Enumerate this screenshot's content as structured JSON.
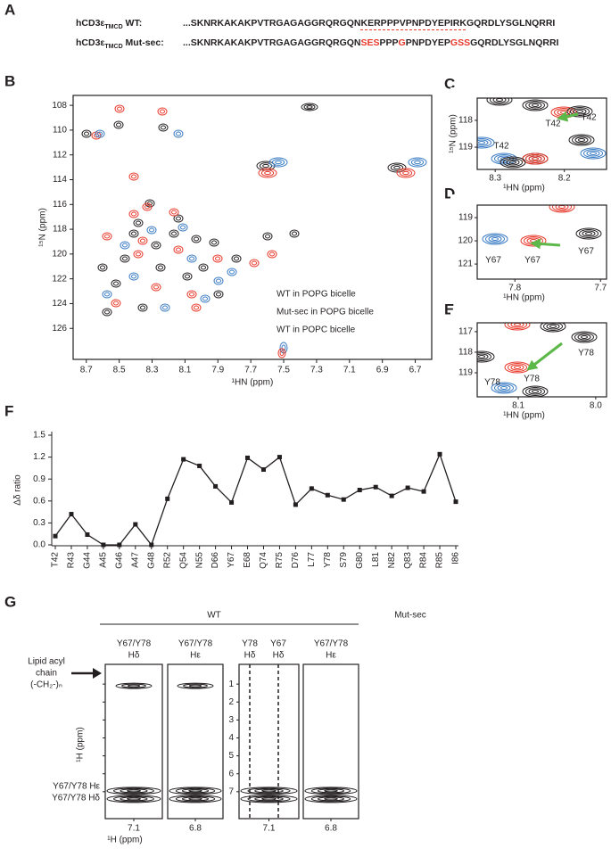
{
  "panel_labels": [
    "A",
    "B",
    "C",
    "D",
    "E",
    "F",
    "G"
  ],
  "sequences": [
    {
      "name": "hCD3ε",
      "subscript": "TMCD",
      "suffix": " WT:",
      "segments": [
        {
          "text": "...SKNRKAKAKPVTRGAGAGGRQRGQN"
        },
        {
          "text": "KERPPPVPNPDYEPIRK",
          "underline": true
        },
        {
          "text": "GQRDLYSGLNQRRI"
        }
      ]
    },
    {
      "name": "hCD3ε",
      "subscript": "TMCD",
      "suffix": " Mut-sec:",
      "segments": [
        {
          "text": "...SKNRKAKAKPVTRGAGAGGRQRGQN"
        },
        {
          "text": "SES",
          "color": "#e8392b"
        },
        {
          "text": "PPP"
        },
        {
          "text": "G",
          "color": "#e8392b"
        },
        {
          "text": "PNPDYEP"
        },
        {
          "text": "GSS",
          "color": "#e8392b"
        },
        {
          "text": "GQRDLYSGLNQRRI"
        }
      ]
    }
  ],
  "spectrum": {
    "xlabel": "¹HN (ppm)",
    "ylabel": "¹⁵N (ppm)",
    "xlim": [
      8.78,
      6.6
    ],
    "ylim": [
      107.2,
      128.5
    ],
    "xticks": [
      8.7,
      8.5,
      8.3,
      8.1,
      7.9,
      7.7,
      7.5,
      7.3,
      7.1,
      6.9,
      6.7
    ],
    "yticks": [
      108,
      110,
      112,
      114,
      116,
      118,
      120,
      122,
      124,
      126
    ],
    "legend": [
      {
        "name": "WT in POPG bicelle",
        "color": "#231f20"
      },
      {
        "name": "Mut-sec in POPG bicelle",
        "color": "#e8392b"
      },
      {
        "name": "WT in POPC bicelle",
        "color": "#3a7cc4"
      }
    ]
  },
  "insets": [
    {
      "xlabel": "¹HN (ppm)",
      "ylabel": "¹⁵N (ppm)",
      "xlim": [
        8.326,
        8.139
      ],
      "ylim": [
        117.17,
        119.83
      ],
      "xticks": [
        8.3,
        8.2
      ],
      "yticks": [
        118,
        119
      ],
      "labels": [
        {
          "text": "T42",
          "color": "#231f20"
        },
        {
          "text": "T42",
          "color": "#e8392b"
        },
        {
          "text": "T42",
          "color": "#3a7cc4"
        }
      ]
    },
    {
      "xlabel": "¹HN (ppm)",
      "xlim": [
        7.844,
        7.693
      ],
      "ylim": [
        118.46,
        121.65
      ],
      "xticks": [
        7.8,
        7.7
      ],
      "yticks": [
        119,
        120,
        121
      ],
      "labels": [
        {
          "text": "Y67",
          "color": "#231f20"
        },
        {
          "text": "Y67",
          "color": "#e8392b"
        },
        {
          "text": "Y67",
          "color": "#3a7cc4"
        }
      ]
    },
    {
      "xlabel": "¹HN (ppm)",
      "xlim": [
        8.153,
        7.986
      ],
      "ylim": [
        116.57,
        120.17
      ],
      "xticks": [
        8.1,
        {
          "value": 8,
          "label": "8.0"
        }
      ],
      "yticks": [
        117,
        118,
        119
      ],
      "labels": [
        {
          "text": "Y78",
          "color": "#231f20"
        },
        {
          "text": "Y78",
          "color": "#e8392b"
        },
        {
          "text": "Y78",
          "color": "#3a7cc4"
        }
      ]
    }
  ],
  "chart_data": {
    "type": "line",
    "ylabel": "Δδ ratio",
    "categories": [
      "T42",
      "R43",
      "G44",
      "A45",
      "G46",
      "A47",
      "G48",
      "R52",
      "Q54",
      "N55",
      "D66",
      "Y67",
      "E68",
      "Q74",
      "R75",
      "D76",
      "L77",
      "Y78",
      "S79",
      "G80",
      "L81",
      "N82",
      "Q83",
      "R84",
      "R85",
      "I86"
    ],
    "values": [
      0.12,
      0.42,
      0.14,
      0.0,
      0.0,
      0.28,
      0.0,
      0.63,
      1.17,
      1.08,
      0.8,
      0.58,
      1.19,
      1.03,
      1.2,
      0.55,
      0.77,
      0.68,
      0.62,
      0.75,
      0.79,
      0.67,
      0.78,
      0.73,
      1.24,
      0.59
    ],
    "color": "#231f20",
    "ylim": [
      0,
      1.5
    ],
    "yticks": [
      {
        "value": 0,
        "label": "0.0"
      },
      0.3,
      0.6,
      0.9,
      1.2,
      1.5
    ]
  },
  "noesy": {
    "groups": [
      "WT",
      "Mut-sec"
    ],
    "ylabel": "¹H (ppm)",
    "xlabel": "¹H (ppm)",
    "ylim": [
      -0.1,
      8.5
    ],
    "yticks": [
      1,
      2,
      3,
      4,
      5,
      6,
      7
    ],
    "boxes": [
      {
        "labels": [
          [
            "Y67/Y78",
            "Hδ"
          ]
        ],
        "xlim": [
          7.25,
          6.95
        ],
        "xticks": [
          7.1
        ]
      },
      {
        "labels": [
          [
            "Y67/Y78",
            "Hε"
          ]
        ],
        "xlim": [
          6.95,
          6.65
        ],
        "xticks": [
          6.8
        ]
      },
      {
        "labels": [
          [
            "Y78",
            "Hδ"
          ],
          [
            "Y67",
            "Hδ"
          ]
        ],
        "xlim": [
          7.25,
          6.95
        ],
        "xticks": [
          7.1
        ]
      },
      {
        "labels": [
          [
            "Y67/Y78",
            "Hε"
          ]
        ],
        "xlim": [
          6.95,
          6.65
        ],
        "xticks": [
          6.8
        ]
      }
    ],
    "lipid_label": [
      "Lipid acyl",
      "chain",
      "(-CH₂-)ₙ"
    ],
    "peak_labels": [
      "Y67/Y78 Hε",
      "Y67/Y78 Hδ"
    ]
  }
}
